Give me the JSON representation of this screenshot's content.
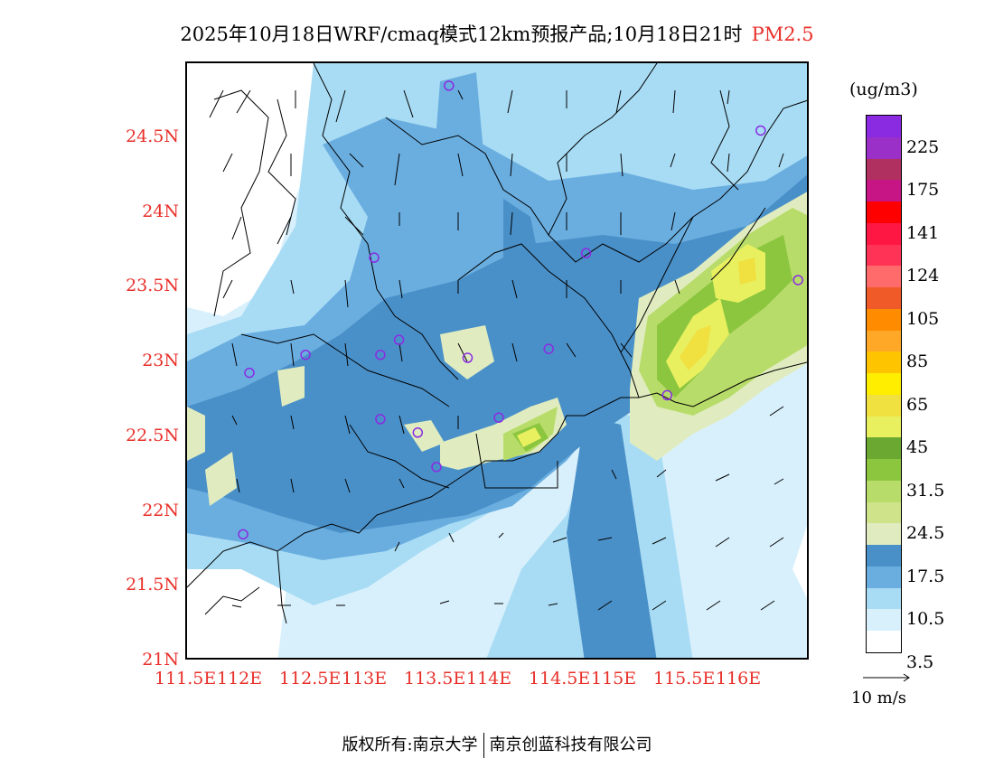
{
  "title": {
    "main": "2025年10月18日WRF/cmaq模式12km预报产品;10月18日21时",
    "species": "PM2.5"
  },
  "axes": {
    "y_ticks": [
      {
        "label": "24.5N",
        "lat": 24.5
      },
      {
        "label": "24N",
        "lat": 24.0
      },
      {
        "label": "23.5N",
        "lat": 23.5
      },
      {
        "label": "23N",
        "lat": 23.0
      },
      {
        "label": "22.5N",
        "lat": 22.5
      },
      {
        "label": "22N",
        "lat": 22.0
      },
      {
        "label": "21.5N",
        "lat": 21.5
      },
      {
        "label": "21N",
        "lat": 21.0
      }
    ],
    "x_ticks": [
      {
        "label": "111.5E",
        "lon": 111.5
      },
      {
        "label": "112E",
        "lon": 112.0
      },
      {
        "label": "112.5E",
        "lon": 112.5
      },
      {
        "label": "113E",
        "lon": 113.0
      },
      {
        "label": "113.5E",
        "lon": 113.5
      },
      {
        "label": "114E",
        "lon": 114.0
      },
      {
        "label": "114.5E",
        "lon": 114.5
      },
      {
        "label": "115E",
        "lon": 115.0
      },
      {
        "label": "115.5E",
        "lon": 115.5
      },
      {
        "label": "116E",
        "lon": 116.0
      }
    ],
    "lon_range": [
      111.5,
      116.5
    ],
    "lat_range": [
      21.0,
      25.0
    ],
    "tick_color": "#e8302a"
  },
  "legend": {
    "unit": "(ug/m3)",
    "colors_top_to_bottom": [
      "#8a2be2",
      "#9b30c8",
      "#b03060",
      "#c71585",
      "#ff0000",
      "#ff1744",
      "#ff3355",
      "#ff6a6a",
      "#f05a28",
      "#ff8c00",
      "#ffa726",
      "#ffc400",
      "#ffee00",
      "#f0e040",
      "#e8f060",
      "#6aa832",
      "#8cc63f",
      "#b8dc6a",
      "#cfe48a",
      "#e0ecc0",
      "#4a90c8",
      "#6aaee0",
      "#a8dcf4",
      "#d8f0fc",
      "#ffffff"
    ],
    "labels": [
      "225",
      "175",
      "141",
      "124",
      "105",
      "85",
      "65",
      "45",
      "31.5",
      "24.5",
      "17.5",
      "10.5",
      "3.5"
    ]
  },
  "wind_reference": {
    "label": "10 m/s"
  },
  "footer": {
    "left": "版权所有:南京大学",
    "right": "南京创蓝科技有限公司"
  },
  "stations": [
    {
      "lon": 113.6,
      "lat": 24.85
    },
    {
      "lon": 116.1,
      "lat": 24.55
    },
    {
      "lon": 113.0,
      "lat": 23.7
    },
    {
      "lon": 114.7,
      "lat": 23.73
    },
    {
      "lon": 116.4,
      "lat": 23.55
    },
    {
      "lon": 112.45,
      "lat": 23.05
    },
    {
      "lon": 113.05,
      "lat": 23.05
    },
    {
      "lon": 113.2,
      "lat": 23.15
    },
    {
      "lon": 113.75,
      "lat": 23.03
    },
    {
      "lon": 114.4,
      "lat": 23.09
    },
    {
      "lon": 112.0,
      "lat": 22.93
    },
    {
      "lon": 115.35,
      "lat": 22.78
    },
    {
      "lon": 113.05,
      "lat": 22.62
    },
    {
      "lon": 113.35,
      "lat": 22.53
    },
    {
      "lon": 114.0,
      "lat": 22.63
    },
    {
      "lon": 113.5,
      "lat": 22.3
    },
    {
      "lon": 111.95,
      "lat": 21.85
    }
  ]
}
